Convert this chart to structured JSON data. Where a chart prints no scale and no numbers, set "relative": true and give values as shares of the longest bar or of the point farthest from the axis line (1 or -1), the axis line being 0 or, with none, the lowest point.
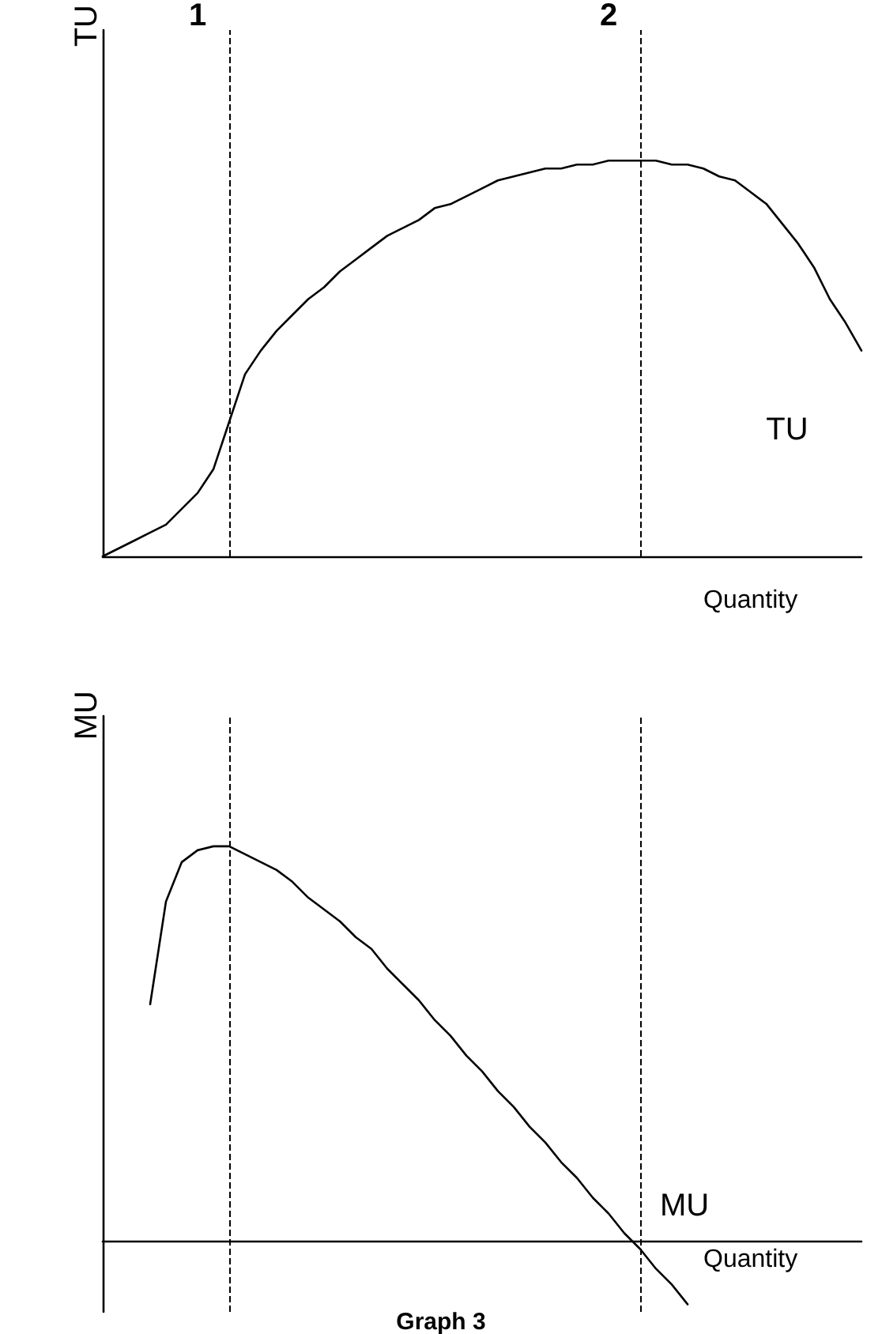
{
  "chart_data": [
    {
      "type": "line",
      "ylabel": "TU",
      "xlabel": "Quantity",
      "relative": true,
      "grid": false,
      "legend": false,
      "marker": "none",
      "line_style": "solid",
      "categories": [
        null,
        null,
        null,
        null,
        null,
        null,
        null,
        null,
        null,
        null,
        null,
        null,
        null,
        null,
        null,
        null,
        null,
        null,
        null,
        null,
        null,
        null,
        null,
        null,
        null,
        null,
        null,
        null,
        null,
        null,
        null,
        null,
        null,
        null,
        null,
        null,
        null,
        null,
        null,
        null,
        null,
        null,
        null,
        null,
        null,
        null,
        null,
        null,
        null
      ],
      "series": [
        {
          "name": "TU",
          "color": "#000000",
          "values": [
            0,
            0.02,
            0.04,
            0.06,
            0.08,
            0.12,
            0.16,
            0.22,
            0.34,
            0.46,
            0.52,
            0.57,
            0.61,
            0.65,
            0.68,
            0.72,
            0.75,
            0.78,
            0.81,
            0.83,
            0.85,
            0.88,
            0.89,
            0.91,
            0.93,
            0.95,
            0.96,
            0.97,
            0.98,
            0.98,
            0.99,
            0.99,
            1,
            1,
            1,
            1,
            0.99,
            0.99,
            0.98,
            0.96,
            0.95,
            0.92,
            0.89,
            0.84,
            0.79,
            0.73,
            0.65,
            0.59,
            0.52
          ]
        }
      ],
      "annotations": [
        "1",
        "2"
      ]
    },
    {
      "type": "line",
      "ylabel": "MU",
      "xlabel": "Quantity",
      "relative": true,
      "grid": false,
      "legend": false,
      "marker": "none",
      "line_style": "solid",
      "categories": [
        null,
        null,
        null,
        null,
        null,
        null,
        null,
        null,
        null,
        null,
        null,
        null,
        null,
        null,
        null,
        null,
        null,
        null,
        null,
        null,
        null,
        null,
        null,
        null,
        null,
        null,
        null,
        null,
        null,
        null,
        null,
        null,
        null,
        null,
        null,
        null,
        null,
        null,
        null,
        null,
        null,
        null,
        null,
        null,
        null,
        null,
        null,
        null,
        null
      ],
      "series": [
        {
          "name": "MU",
          "color": "#000000",
          "values": [
            null,
            null,
            null,
            0.6,
            0.86,
            0.96,
            0.99,
            1,
            1,
            0.98,
            0.96,
            0.94,
            0.91,
            0.87,
            0.84,
            0.81,
            0.77,
            0.74,
            0.69,
            0.65,
            0.61,
            0.56,
            0.52,
            0.47,
            0.43,
            0.38,
            0.34,
            0.29,
            0.25,
            0.2,
            0.16,
            0.11,
            0.07,
            0.02,
            -0.02,
            -0.07,
            -0.11,
            -0.16,
            null,
            null,
            null,
            null,
            null,
            null,
            null,
            null,
            null,
            null,
            null
          ]
        }
      ],
      "annotations": [
        "Graph 3"
      ]
    }
  ]
}
